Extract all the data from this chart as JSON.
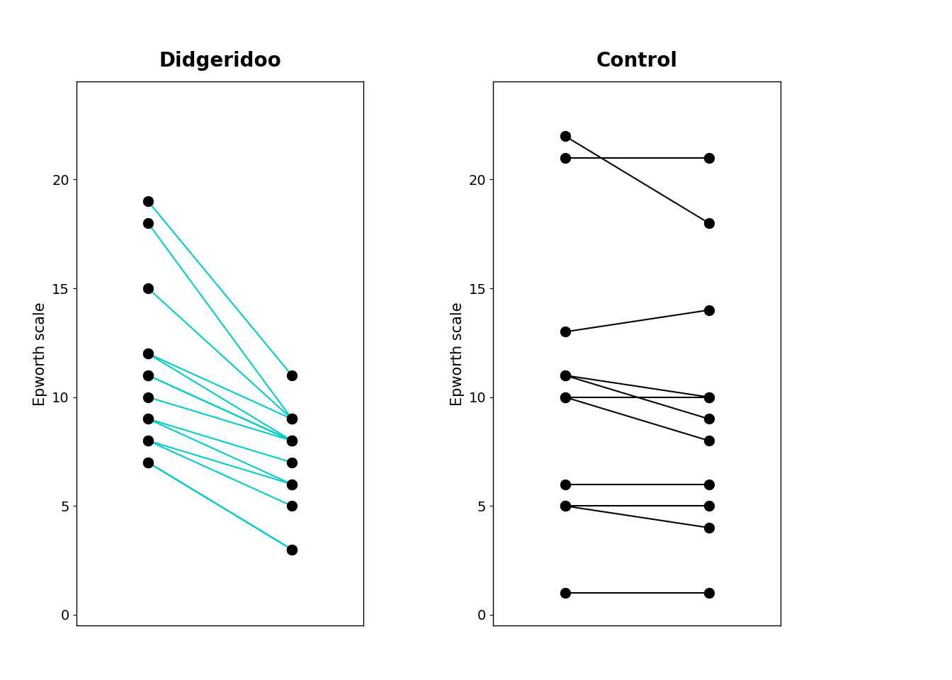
{
  "didgeridoo": {
    "baseline": [
      19,
      18,
      15,
      12,
      12,
      11,
      11,
      10,
      9,
      9,
      8,
      8,
      7,
      7
    ],
    "followup": [
      11,
      9,
      9,
      9,
      8,
      8,
      8,
      8,
      7,
      6,
      6,
      5,
      3,
      3
    ]
  },
  "control": {
    "baseline": [
      22,
      21,
      13,
      11,
      11,
      10,
      10,
      6,
      5,
      5,
      1
    ],
    "followup": [
      18,
      21,
      14,
      10,
      9,
      8,
      10,
      6,
      5,
      4,
      1
    ]
  },
  "didgeridoo_title": "Didgeridoo",
  "control_title": "Control",
  "ylabel": "Epworth scale",
  "line_color_didgeridoo": "#00CCCC",
  "line_color_control": "#000000",
  "dot_color": "#000000",
  "ylim": [
    -0.5,
    24.5
  ],
  "yticks": [
    0,
    5,
    10,
    15,
    20
  ],
  "x_baseline": 1,
  "x_followup": 2,
  "xlim": [
    0.5,
    2.5
  ],
  "title_fontsize": 20,
  "axis_label_fontsize": 15,
  "tick_fontsize": 14,
  "dot_size": 100,
  "line_width": 1.5,
  "background_color": "#ffffff"
}
